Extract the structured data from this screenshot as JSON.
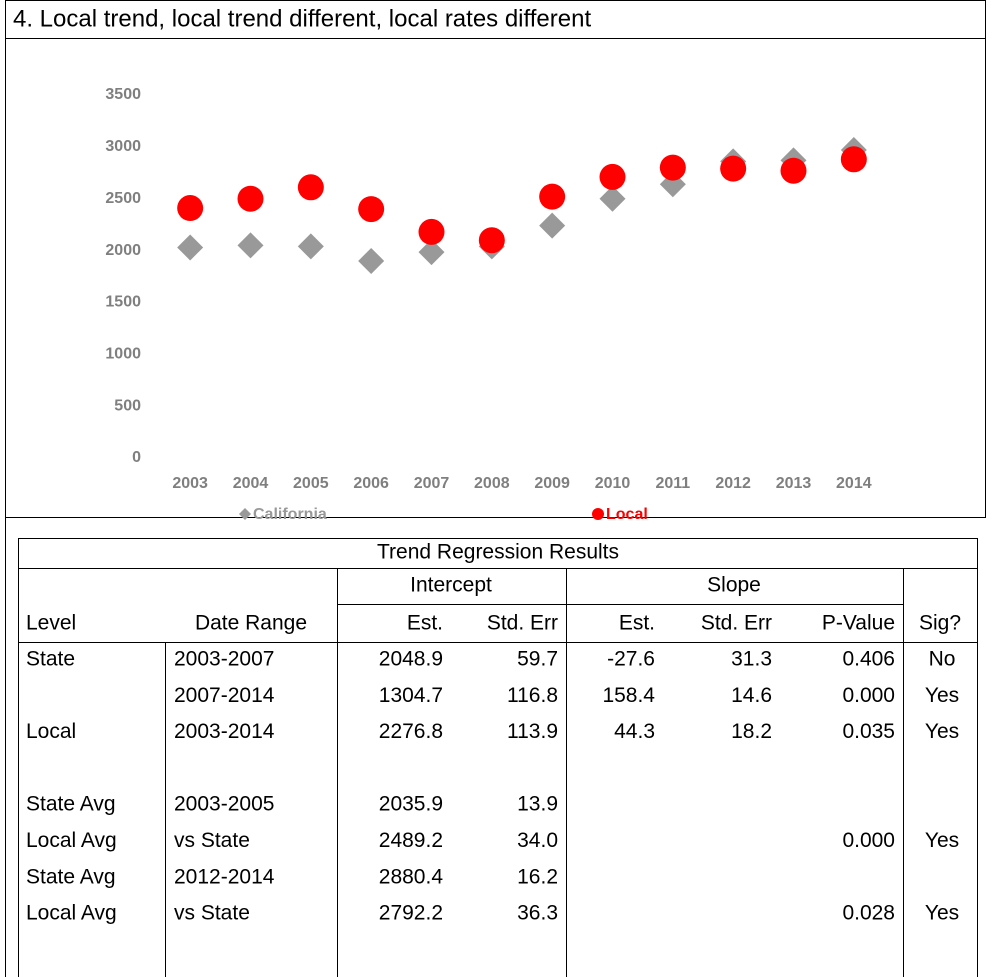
{
  "chart_data": {
    "type": "scatter",
    "title": "4. Local trend, local trend different, local rates different",
    "categories": [
      "2003",
      "2004",
      "2005",
      "2006",
      "2007",
      "2008",
      "2009",
      "2010",
      "2011",
      "2012",
      "2013",
      "2014"
    ],
    "series": [
      {
        "name": "California",
        "color": "#999999",
        "marker": "diamond",
        "values": [
          2030,
          2050,
          2040,
          1900,
          1985,
          2040,
          2240,
          2500,
          2640,
          2860,
          2870,
          2970
        ]
      },
      {
        "name": "Local",
        "color": "#ff0000",
        "marker": "circle",
        "values": [
          2410,
          2500,
          2610,
          2400,
          2180,
          2100,
          2520,
          2710,
          2800,
          2790,
          2770,
          2880
        ]
      }
    ],
    "ylim": [
      0,
      3500
    ],
    "yticks": [
      0,
      500,
      1000,
      1500,
      2000,
      2500,
      3000,
      3500
    ],
    "grid": false
  },
  "table": {
    "title": "Trend Regression Results",
    "group_headers": [
      "Intercept",
      "Slope"
    ],
    "headers": [
      "Level",
      "Date Range",
      "Est.",
      "Std. Err",
      "Est.",
      "Std. Err",
      "P-Value",
      "Sig?"
    ],
    "rows": [
      [
        "State",
        "2003-2007",
        "2048.9",
        "59.7",
        "-27.6",
        "31.3",
        "0.406",
        "No"
      ],
      [
        null,
        "2007-2014",
        "1304.7",
        "116.8",
        "158.4",
        "14.6",
        "0.000",
        "Yes"
      ],
      [
        "Local",
        "2003-2014",
        "2276.8",
        "113.9",
        "44.3",
        "18.2",
        "0.035",
        "Yes"
      ],
      [
        "State Avg",
        "2003-2005",
        "2035.9",
        "13.9",
        null,
        null,
        null,
        null
      ],
      [
        "Local Avg",
        "vs State",
        "2489.2",
        "34.0",
        null,
        null,
        "0.000",
        "Yes"
      ],
      [
        "State Avg",
        "2012-2014",
        "2880.4",
        "16.2",
        null,
        null,
        null,
        null
      ],
      [
        "Local Avg",
        "vs State",
        "2792.2",
        "36.3",
        null,
        null,
        "0.028",
        "Yes"
      ]
    ]
  }
}
